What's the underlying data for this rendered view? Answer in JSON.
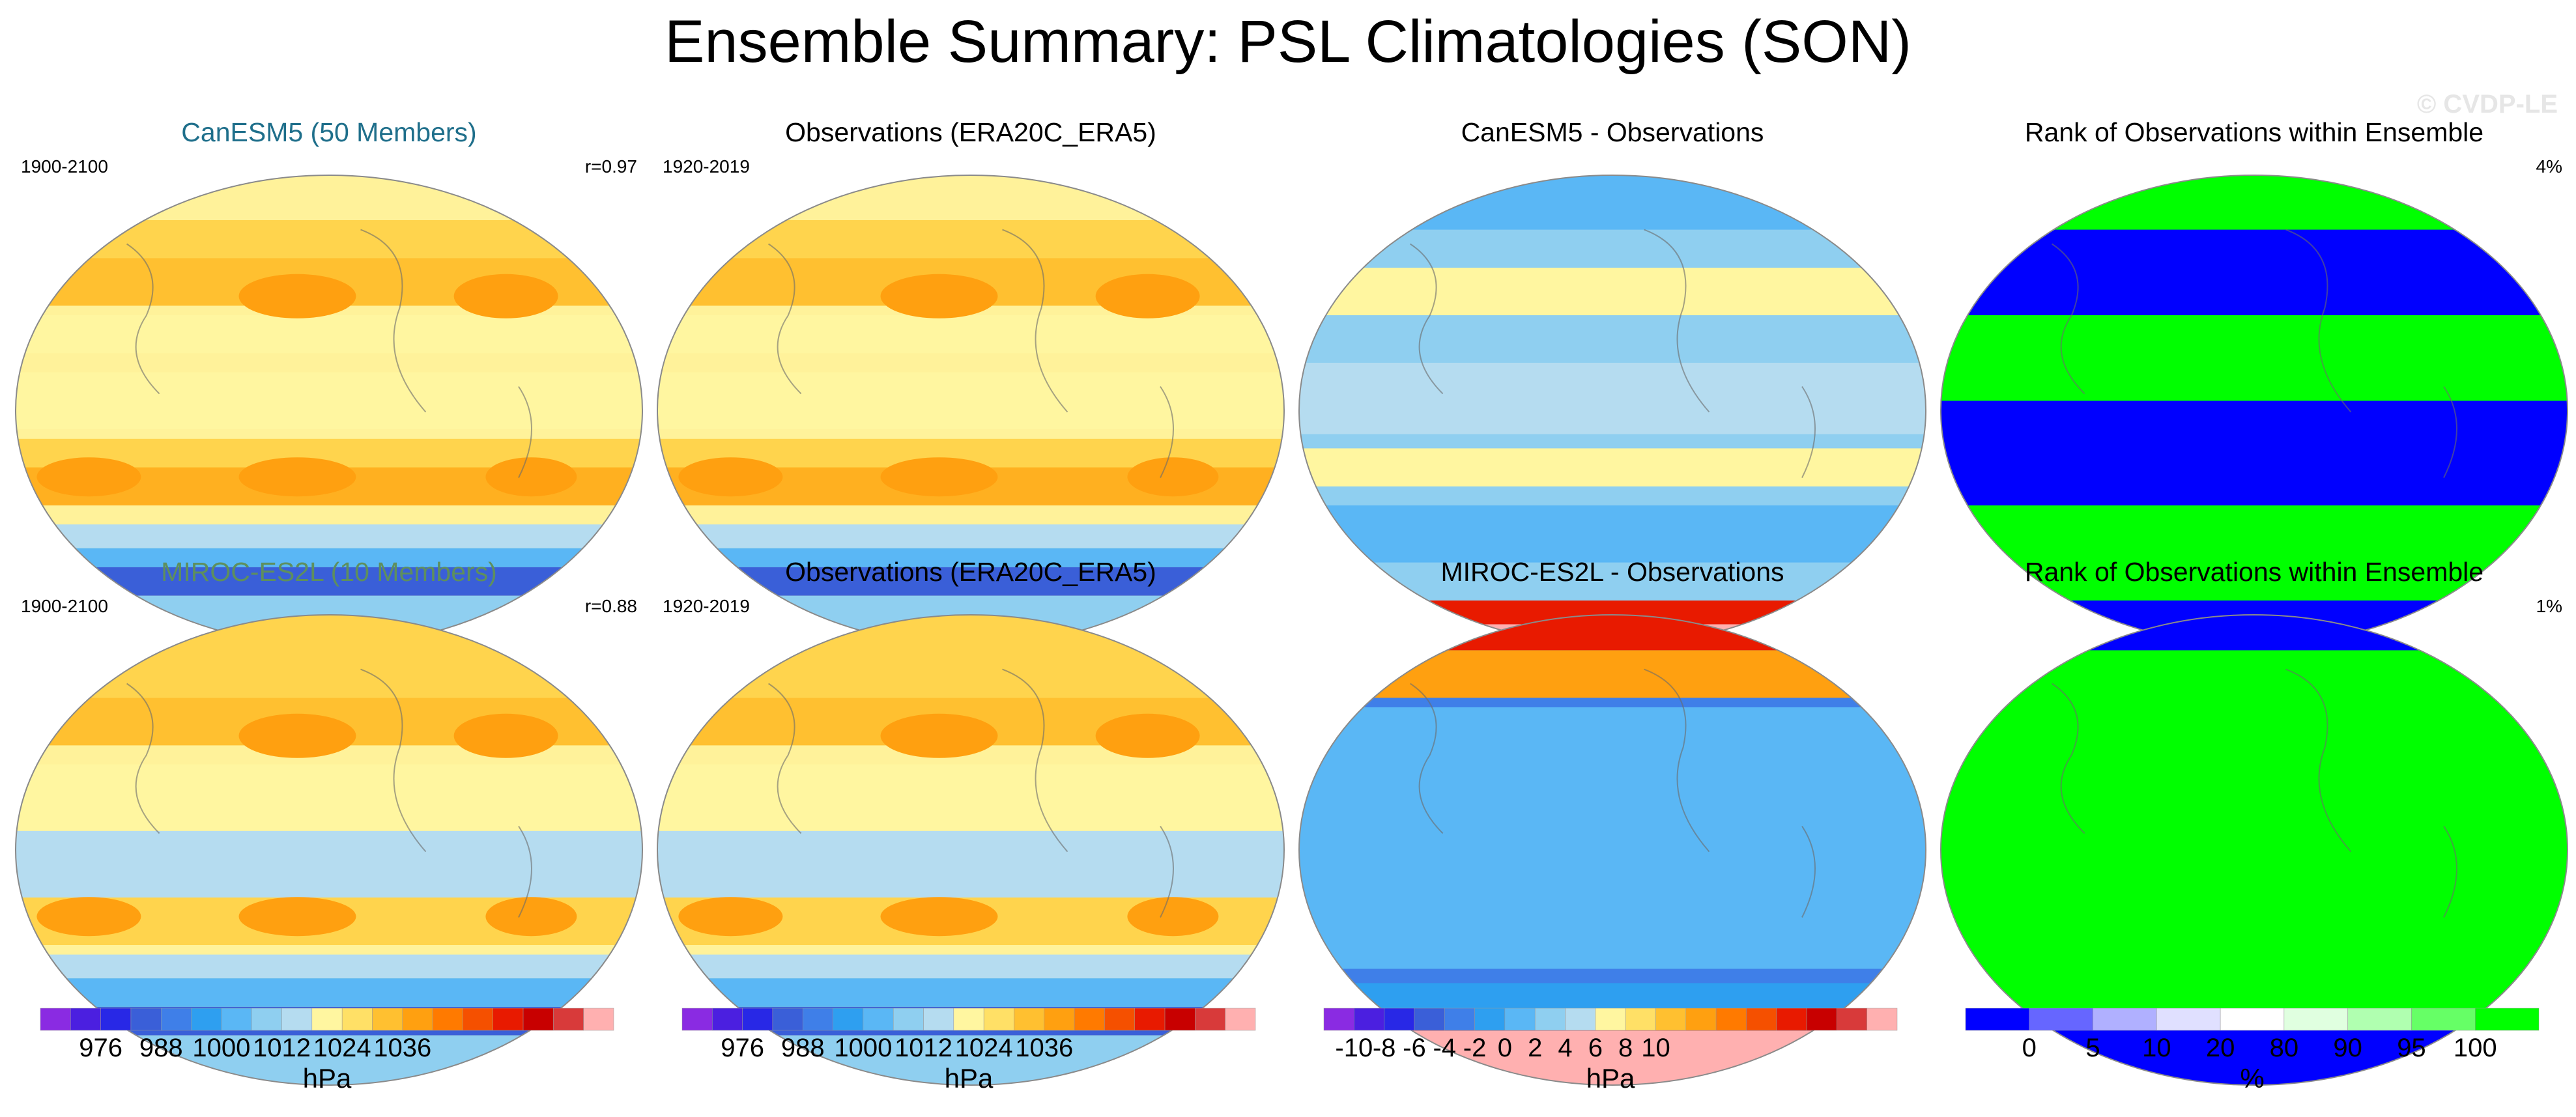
{
  "title": "Ensemble Summary: PSL Climatologies (SON)",
  "watermark": "© CVDP-LE",
  "panels": [
    {
      "title": "CanESM5 (50 Members)",
      "title_color": "#1f6f8b",
      "left_label": "1900-2100",
      "right_label": "r=0.97",
      "kind": "psl"
    },
    {
      "title": "Observations (ERA20C_ERA5)",
      "title_color": "#000000",
      "left_label": "1920-2019",
      "right_label": "",
      "kind": "psl"
    },
    {
      "title": "CanESM5 - Observations",
      "title_color": "#000000",
      "left_label": "",
      "right_label": "",
      "kind": "diff"
    },
    {
      "title": "Rank of Observations within Ensemble",
      "title_color": "#000000",
      "left_label": "",
      "right_label": "4%",
      "kind": "rank"
    },
    {
      "title": "MIROC-ES2L (10 Members)",
      "title_color": "#5e8f5e",
      "left_label": "1900-2100",
      "right_label": "r=0.88",
      "kind": "psl"
    },
    {
      "title": "Observations (ERA20C_ERA5)",
      "title_color": "#000000",
      "left_label": "1920-2019",
      "right_label": "",
      "kind": "psl"
    },
    {
      "title": "MIROC-ES2L - Observations",
      "title_color": "#000000",
      "left_label": "",
      "right_label": "",
      "kind": "diff"
    },
    {
      "title": "Rank of Observations within Ensemble",
      "title_color": "#000000",
      "left_label": "",
      "right_label": "1%",
      "kind": "rank"
    }
  ],
  "colorbars": [
    {
      "name": "psl-colorbar-1",
      "unit": "hPa",
      "ticks": [
        "976",
        "988",
        "1000",
        "1012",
        "1024",
        "1036"
      ],
      "tick_at": [
        2,
        4,
        6,
        8,
        10,
        12
      ],
      "colors": [
        "#8a2be2",
        "#4b1fe0",
        "#2828e6",
        "#3a5fd8",
        "#3f7fe8",
        "#2e9ff0",
        "#5ab7f5",
        "#8fcff0",
        "#b5dcf0",
        "#fff6a0",
        "#ffe066",
        "#ffc030",
        "#ffa010",
        "#ff7a00",
        "#f55000",
        "#e81a00",
        "#c80000",
        "#d83a3a",
        "#ffb0b0"
      ]
    },
    {
      "name": "psl-colorbar-2",
      "unit": "hPa",
      "ticks": [
        "976",
        "988",
        "1000",
        "1012",
        "1024",
        "1036"
      ],
      "tick_at": [
        2,
        4,
        6,
        8,
        10,
        12
      ],
      "colors": [
        "#8a2be2",
        "#4b1fe0",
        "#2828e6",
        "#3a5fd8",
        "#3f7fe8",
        "#2e9ff0",
        "#5ab7f5",
        "#8fcff0",
        "#b5dcf0",
        "#fff6a0",
        "#ffe066",
        "#ffc030",
        "#ffa010",
        "#ff7a00",
        "#f55000",
        "#e81a00",
        "#c80000",
        "#d83a3a",
        "#ffb0b0"
      ]
    },
    {
      "name": "diff-colorbar",
      "unit": "hPa",
      "ticks": [
        "-10",
        "-8",
        "-6",
        "-4",
        "-2",
        "0",
        "2",
        "4",
        "6",
        "8",
        "10"
      ],
      "tick_at": [
        1,
        2,
        3,
        4,
        5,
        6,
        7,
        8,
        9,
        10,
        11
      ],
      "colors": [
        "#8a2be2",
        "#4b1fe0",
        "#2828e6",
        "#3a5fd8",
        "#3f7fe8",
        "#2e9ff0",
        "#5ab7f5",
        "#8fcff0",
        "#b5dcf0",
        "#fff6a0",
        "#ffe066",
        "#ffc030",
        "#ffa010",
        "#ff7a00",
        "#f55000",
        "#e81a00",
        "#c80000",
        "#d83a3a",
        "#ffb0b0"
      ]
    },
    {
      "name": "rank-colorbar",
      "unit": "%",
      "ticks": [
        "0",
        "5",
        "10",
        "20",
        "80",
        "90",
        "95",
        "100"
      ],
      "tick_at": [
        1,
        2,
        3,
        4,
        5,
        6,
        7,
        8
      ],
      "colors": [
        "#0000ff",
        "#6666ff",
        "#b0b0ff",
        "#e0e0ff",
        "#ffffff",
        "#e0ffe0",
        "#b0ffb0",
        "#66ff66",
        "#00ff00"
      ]
    }
  ],
  "chart_data": [
    {
      "type": "heatmap",
      "title": "CanESM5 (50 Members)",
      "subtitle": "1900-2100",
      "annotation": "r=0.97",
      "variable": "PSL",
      "units": "hPa",
      "levels": [
        976,
        988,
        1000,
        1012,
        1024,
        1036
      ]
    },
    {
      "type": "heatmap",
      "title": "Observations (ERA20C_ERA5)",
      "subtitle": "1920-2019",
      "variable": "PSL",
      "units": "hPa",
      "levels": [
        976,
        988,
        1000,
        1012,
        1024,
        1036
      ]
    },
    {
      "type": "heatmap",
      "title": "CanESM5 - Observations",
      "variable": "PSL difference",
      "units": "hPa",
      "levels": [
        -10,
        -8,
        -6,
        -4,
        -2,
        0,
        2,
        4,
        6,
        8,
        10
      ]
    },
    {
      "type": "heatmap",
      "title": "Rank of Observations within Ensemble",
      "annotation": "4%",
      "units": "%",
      "levels": [
        0,
        5,
        10,
        20,
        80,
        90,
        95,
        100
      ]
    },
    {
      "type": "heatmap",
      "title": "MIROC-ES2L (10 Members)",
      "subtitle": "1900-2100",
      "annotation": "r=0.88",
      "variable": "PSL",
      "units": "hPa",
      "levels": [
        976,
        988,
        1000,
        1012,
        1024,
        1036
      ]
    },
    {
      "type": "heatmap",
      "title": "Observations (ERA20C_ERA5)",
      "subtitle": "1920-2019",
      "variable": "PSL",
      "units": "hPa",
      "levels": [
        976,
        988,
        1000,
        1012,
        1024,
        1036
      ]
    },
    {
      "type": "heatmap",
      "title": "MIROC-ES2L - Observations",
      "variable": "PSL difference",
      "units": "hPa",
      "levels": [
        -10,
        -8,
        -6,
        -4,
        -2,
        0,
        2,
        4,
        6,
        8,
        10
      ]
    },
    {
      "type": "heatmap",
      "title": "Rank of Observations within Ensemble",
      "annotation": "1%",
      "units": "%",
      "levels": [
        0,
        5,
        10,
        20,
        80,
        90,
        95,
        100
      ]
    }
  ]
}
